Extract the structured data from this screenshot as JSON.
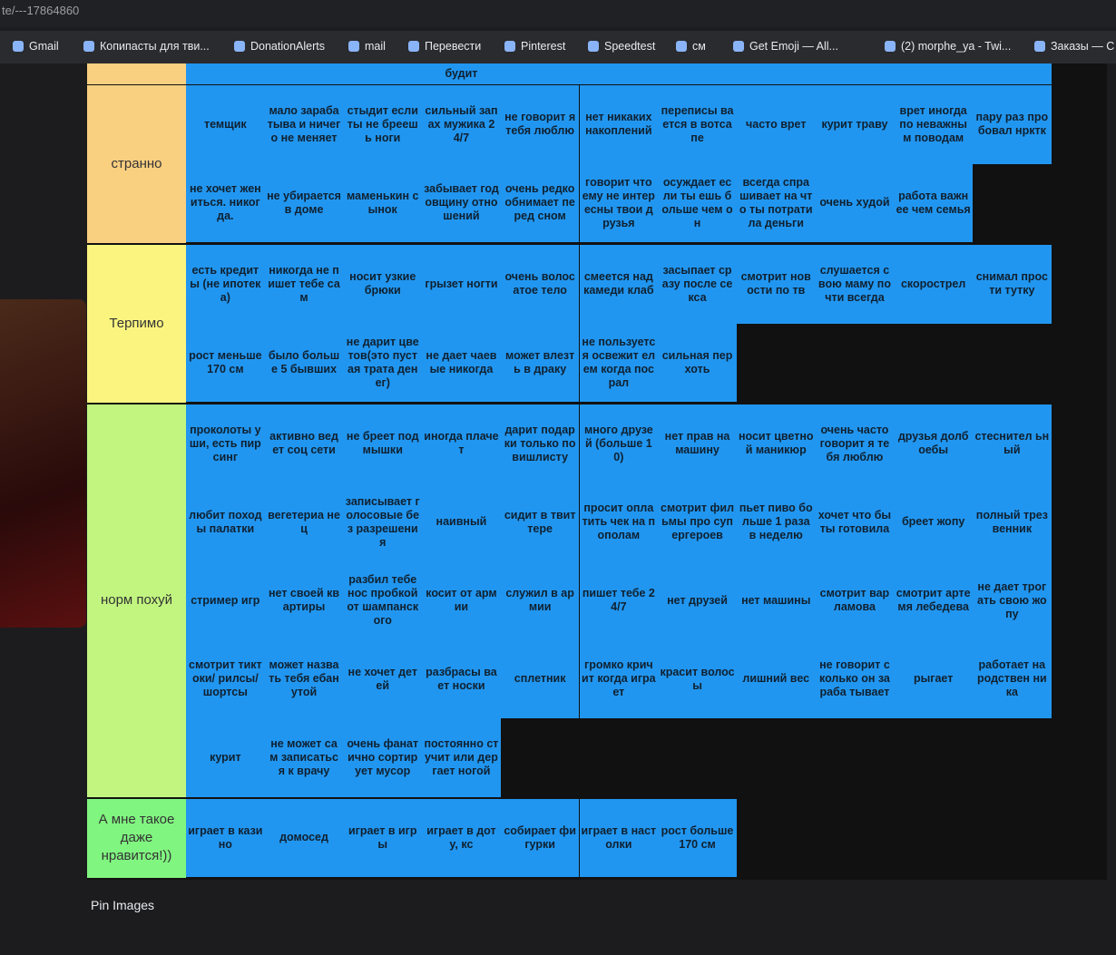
{
  "address": "te/---17864860",
  "bookmarks": [
    "Gmail",
    "Копипасты для тви...",
    "DonationAlerts",
    "mail",
    "Перевести",
    "Pinterest",
    "Speedtest",
    "см",
    "Get Emoji — All...",
    "(2) morphe_ya - Twi...",
    "Заказы — C"
  ],
  "cut_off_text": "будит",
  "tiers": [
    {
      "label": "странно",
      "color": "#f9cf80",
      "rows": [
        [
          "темщик",
          "мало зарабатыва и ничего не меняет",
          "стыдит если ты не бреешь ноги",
          "сильный запах мужика 24/7",
          "не говорит я тебя люблю",
          "нет никаких накоплений",
          "переписы вается в вотсапе",
          "часто врет",
          "курит траву",
          "врет иногда по неважным поводам",
          "пару раз пробовал нрктк"
        ],
        [
          "не хочет жениться. никогда.",
          "не убирается в доме",
          "маменькин сынок",
          "забывает годовщину отношений",
          "очень редко обнимает перед сном",
          "говорит что ему не интересны твои друзья",
          "осуждает если ты ешь больше чем он",
          "всегда спрашивает на что ты потратила деньги",
          "очень худой",
          "работа важнее чем семья"
        ]
      ]
    },
    {
      "label": "Терпимо",
      "color": "#fbf580",
      "rows": [
        [
          "есть кредиты (не ипотека)",
          "никогда не пишет тебе сам",
          "носит узкие брюки",
          "грызет ногти",
          "очень волосатое тело",
          "смеется над камеди клаб",
          "засыпает сразу после секса",
          "смотрит новости по тв",
          "слушается свою маму почти всегда",
          "скорострел",
          "снимал прости тутку"
        ],
        [
          "рост меньше 170 см",
          "было больше 5 бывших",
          "не дарит цветов(это пустая трата денег)",
          "не дает чаевые никогда",
          "может влезть в драку",
          "не пользуется освежит елем когда посрал",
          "сильная перхоть"
        ]
      ]
    },
    {
      "label": "норм похуй",
      "color": "#c2f580",
      "rows": [
        [
          "проколоты уши, есть пирсинг",
          "активно ведет соц сети",
          "не бреет подмышки",
          "иногда плачет",
          "дарит подарки только по вишлисту",
          "много друзей (больше 10)",
          "нет прав на машину",
          "носит цветной маникюр",
          "очень часто говорит я тебя люблю",
          "друзья долбоебы",
          "стеснител ьный"
        ],
        [
          "любит походы палатки",
          "вегетериа нец",
          "записывает голосовые без разрешения",
          "наивный",
          "сидит в твиттере",
          "просит оплатить чек на пополам",
          "смотрит фильмы про супергероев",
          "пьет пиво больше 1 раза в неделю",
          "хочет что бы ты готовила",
          "бреет жопу",
          "полный трезвенник"
        ],
        [
          "стример игр",
          "нет своей квартиры",
          "разбил тебе нос пробкой от шампанского",
          "косит от армии",
          "служил в армии",
          "пишет тебе 24/7",
          "нет друзей",
          "нет машины",
          "смотрит варламова",
          "смотрит артемя лебедева",
          "не дает трогать свою жопу"
        ],
        [
          "смотрит тиктоки/ рилсы/ шортсы",
          "может назвать тебя ебанутой",
          "не хочет детей",
          "разбрасы вает носки",
          "сплетник",
          "громко кричит когда играет",
          "красит волосы",
          "лишний вес",
          "не говорит сколько он зараба тывает",
          "рыгает",
          "работает на родствен ника"
        ],
        [
          "курит",
          "не может сам записаться к врачу",
          "очень фанатично сортирует мусор",
          "постоянно стучит или дергает ногой"
        ]
      ]
    },
    {
      "label": "А мне такое даже нравится!))",
      "color": "#80f580",
      "rows": [
        [
          "играет в казино",
          "домосед",
          "играет в игры",
          "играет в доту, кс",
          "собирает фигурки",
          "играет в настолки",
          "рост больше 170 см"
        ]
      ]
    }
  ],
  "footer": "Pin Images"
}
